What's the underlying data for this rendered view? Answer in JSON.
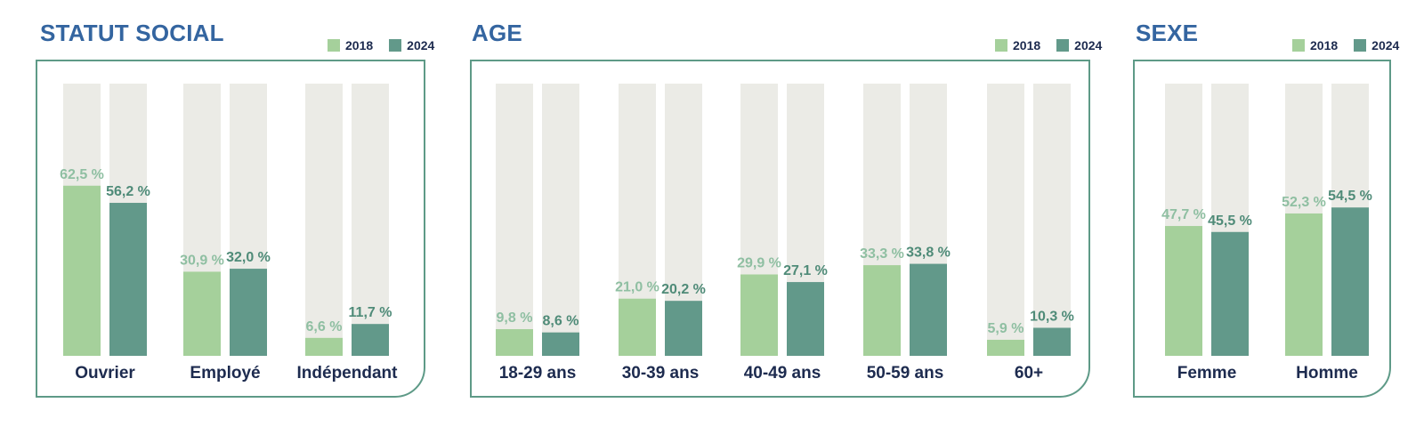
{
  "colors": {
    "y2018": "#a5d09b",
    "y2024": "#62998a",
    "track": "#ebebe6",
    "title": "#3465a0",
    "category": "#1d2b4f",
    "border": "#5e9a87"
  },
  "legend": {
    "a": "2018",
    "b": "2024"
  },
  "chart_data": [
    {
      "type": "bar",
      "title": "STATUT SOCIAL",
      "categories": [
        "Ouvrier",
        "Employé",
        "Indépendant"
      ],
      "series": [
        {
          "name": "2018",
          "values": [
            62.5,
            30.9,
            6.6
          ],
          "labels": [
            "62,5 %",
            "30,9 %",
            "6,6 %"
          ]
        },
        {
          "name": "2024",
          "values": [
            56.2,
            32.0,
            11.7
          ],
          "labels": [
            "56,2 %",
            "32,0 %",
            "11,7 %"
          ]
        }
      ],
      "ylim": [
        0,
        100
      ],
      "grid": false,
      "legend": "top-right"
    },
    {
      "type": "bar",
      "title": "AGE",
      "categories": [
        "18-29 ans",
        "30-39 ans",
        "40-49 ans",
        "50-59 ans",
        "60+"
      ],
      "series": [
        {
          "name": "2018",
          "values": [
            9.8,
            21.0,
            29.9,
            33.3,
            5.9
          ],
          "labels": [
            "9,8 %",
            "21,0 %",
            "29,9 %",
            "33,3 %",
            "5,9 %"
          ]
        },
        {
          "name": "2024",
          "values": [
            8.6,
            20.2,
            27.1,
            33.8,
            10.3
          ],
          "labels": [
            "8,6 %",
            "20,2 %",
            "27,1 %",
            "33,8 %",
            "10,3 %"
          ]
        }
      ],
      "ylim": [
        0,
        100
      ],
      "grid": false,
      "legend": "top-right"
    },
    {
      "type": "bar",
      "title": "SEXE",
      "categories": [
        "Femme",
        "Homme"
      ],
      "series": [
        {
          "name": "2018",
          "values": [
            47.7,
            52.3
          ],
          "labels": [
            "47,7 %",
            "52,3 %"
          ]
        },
        {
          "name": "2024",
          "values": [
            45.5,
            54.5
          ],
          "labels": [
            "45,5 %",
            "54,5 %"
          ]
        }
      ],
      "ylim": [
        0,
        100
      ],
      "grid": false,
      "legend": "top-right"
    }
  ]
}
